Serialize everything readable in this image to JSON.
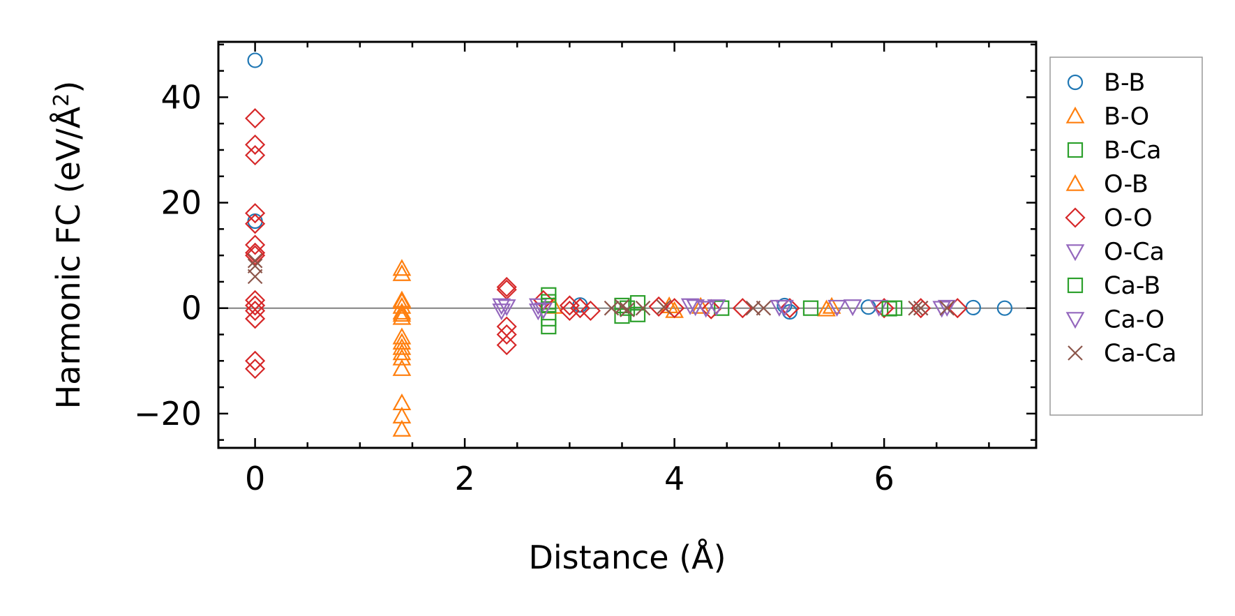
{
  "chart_data": {
    "type": "scatter",
    "xlabel": "Distance (Å)",
    "ylabel_main": "Harmonic FC (eV/Å",
    "ylabel_sup": "2",
    "ylabel_close": ")",
    "xlim": [
      -0.35,
      7.45
    ],
    "ylim": [
      -26.5,
      50.5
    ],
    "xticks": [
      0,
      2,
      4,
      6
    ],
    "yticks": [
      -20,
      0,
      20,
      40
    ],
    "xtick_labels": [
      "0",
      "2",
      "4",
      "6"
    ],
    "ytick_labels": [
      "−20",
      "0",
      "20",
      "40"
    ],
    "zero_line": true,
    "legend_position": "outside-right",
    "series": [
      {
        "name": "B-B",
        "marker": "circle",
        "color": "#1f77b4",
        "points": [
          [
            0,
            47
          ],
          [
            0,
            16.5
          ],
          [
            3.1,
            0.6
          ],
          [
            5.05,
            0.5
          ],
          [
            5.1,
            -0.7
          ],
          [
            5.85,
            0.2
          ],
          [
            6.85,
            0.1
          ],
          [
            7.15,
            0
          ]
        ]
      },
      {
        "name": "B-O",
        "marker": "triangle-up",
        "color": "#ff7f0e",
        "points": [
          [
            1.4,
            7.5
          ],
          [
            1.4,
            6.5
          ],
          [
            1.4,
            1.2
          ],
          [
            1.4,
            0.3
          ],
          [
            1.4,
            -0.8
          ],
          [
            1.4,
            -1.8
          ],
          [
            1.4,
            -5.5
          ],
          [
            1.4,
            -6.5
          ],
          [
            1.4,
            -7.5
          ],
          [
            1.4,
            -8.5
          ],
          [
            1.4,
            -9.5
          ],
          [
            1.4,
            -11.5
          ],
          [
            1.4,
            -18
          ],
          [
            1.4,
            -20.5
          ],
          [
            1.4,
            -23
          ],
          [
            3.95,
            0.4
          ],
          [
            4.25,
            0.3
          ],
          [
            5.45,
            -0.2
          ]
        ]
      },
      {
        "name": "B-Ca",
        "marker": "square",
        "color": "#2ca02c",
        "points": [
          [
            2.8,
            2.5
          ],
          [
            2.8,
            1.2
          ],
          [
            2.8,
            -2
          ],
          [
            2.8,
            -3.5
          ],
          [
            3.5,
            0.5
          ],
          [
            3.5,
            -1.5
          ],
          [
            3.65,
            1
          ],
          [
            3.65,
            -1.2
          ],
          [
            4.45,
            0
          ],
          [
            5.3,
            0
          ],
          [
            6.1,
            0
          ]
        ]
      },
      {
        "name": "O-B",
        "marker": "triangle-up",
        "color": "#ff7f0e",
        "points": [
          [
            1.4,
            1.5
          ],
          [
            1.4,
            -1.2
          ],
          [
            2.85,
            0.3
          ],
          [
            4.0,
            -0.5
          ],
          [
            5.5,
            0.3
          ]
        ]
      },
      {
        "name": "O-O",
        "marker": "diamond",
        "color": "#d62728",
        "points": [
          [
            0,
            36
          ],
          [
            0,
            31
          ],
          [
            0,
            29
          ],
          [
            0,
            18
          ],
          [
            0,
            16
          ],
          [
            0,
            12
          ],
          [
            0,
            10.5
          ],
          [
            0,
            10
          ],
          [
            0,
            1.5
          ],
          [
            0,
            0.5
          ],
          [
            0,
            -0.5
          ],
          [
            0,
            -2
          ],
          [
            0,
            -10
          ],
          [
            0,
            -11.5
          ],
          [
            2.4,
            4
          ],
          [
            2.4,
            3.5
          ],
          [
            2.4,
            -3.5
          ],
          [
            2.4,
            -5
          ],
          [
            2.4,
            -7
          ],
          [
            2.75,
            1.5
          ],
          [
            3.0,
            0.5
          ],
          [
            3.0,
            -0.5
          ],
          [
            3.1,
            0
          ],
          [
            3.2,
            -0.5
          ],
          [
            3.85,
            0.3
          ],
          [
            4.0,
            0
          ],
          [
            4.35,
            -0.2
          ],
          [
            4.65,
            0
          ],
          [
            5.1,
            0
          ],
          [
            6.0,
            0
          ],
          [
            6.35,
            0
          ],
          [
            6.7,
            0
          ]
        ]
      },
      {
        "name": "O-Ca",
        "marker": "triangle-down",
        "color": "#9467bd",
        "points": [
          [
            2.35,
            0.5
          ],
          [
            2.35,
            -0.5
          ],
          [
            2.7,
            0.5
          ],
          [
            2.7,
            -0.5
          ],
          [
            4.15,
            0.5
          ],
          [
            4.3,
            0
          ],
          [
            5.05,
            0.2
          ],
          [
            5.95,
            0.2
          ],
          [
            6.55,
            0
          ]
        ]
      },
      {
        "name": "Ca-B",
        "marker": "square",
        "color": "#2ca02c",
        "points": [
          [
            2.8,
            0.5
          ],
          [
            3.55,
            0
          ],
          [
            6.05,
            -0.1
          ]
        ]
      },
      {
        "name": "Ca-O",
        "marker": "triangle-down",
        "color": "#9467bd",
        "points": [
          [
            2.4,
            0.3
          ],
          [
            2.75,
            -0.3
          ],
          [
            4.2,
            0.3
          ],
          [
            4.4,
            0.3
          ],
          [
            5.0,
            0.2
          ],
          [
            5.55,
            0.2
          ],
          [
            5.7,
            0.3
          ],
          [
            6.6,
            0.2
          ]
        ]
      },
      {
        "name": "Ca-Ca",
        "marker": "x",
        "color": "#8c564b",
        "points": [
          [
            0,
            9
          ],
          [
            0,
            8
          ],
          [
            0,
            6
          ],
          [
            3.4,
            0
          ],
          [
            3.5,
            0.3
          ],
          [
            3.55,
            -0.3
          ],
          [
            3.7,
            0
          ],
          [
            3.9,
            0.2
          ],
          [
            4.75,
            0
          ],
          [
            4.85,
            0
          ],
          [
            6.3,
            0
          ],
          [
            6.35,
            0
          ],
          [
            6.6,
            0
          ]
        ]
      }
    ]
  }
}
